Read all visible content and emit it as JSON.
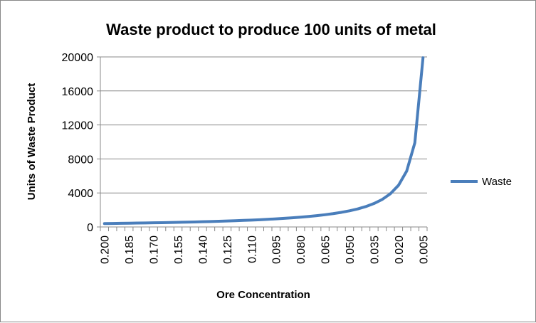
{
  "chart_data": {
    "type": "line",
    "title": "Waste product to produce 100 units of metal",
    "xlabel": "Ore Concentration",
    "ylabel": "Units of Waste Product",
    "ylim": [
      0,
      20000
    ],
    "yticks": [
      "0",
      "4000",
      "8000",
      "12000",
      "16000",
      "20000"
    ],
    "grid": true,
    "legend_position": "right",
    "categories": [
      "0.200",
      "0.195",
      "0.190",
      "0.185",
      "0.180",
      "0.175",
      "0.170",
      "0.165",
      "0.160",
      "0.155",
      "0.150",
      "0.145",
      "0.140",
      "0.135",
      "0.130",
      "0.125",
      "0.120",
      "0.115",
      "0.110",
      "0.105",
      "0.100",
      "0.095",
      "0.090",
      "0.085",
      "0.080",
      "0.075",
      "0.070",
      "0.065",
      "0.060",
      "0.055",
      "0.050",
      "0.045",
      "0.040",
      "0.035",
      "0.030",
      "0.025",
      "0.020",
      "0.015",
      "0.010",
      "0.005"
    ],
    "shown_tick_labels": [
      "0.200",
      "0.185",
      "0.170",
      "0.155",
      "0.140",
      "0.125",
      "0.110",
      "0.095",
      "0.080",
      "0.065",
      "0.050",
      "0.035",
      "0.020",
      "0.005"
    ],
    "series": [
      {
        "name": "Waste",
        "color": "#4a7ebb",
        "values": [
          400,
          413,
          426,
          441,
          456,
          471,
          488,
          506,
          525,
          545,
          567,
          590,
          614,
          641,
          669,
          700,
          733,
          770,
          809,
          852,
          900,
          953,
          1011,
          1076,
          1150,
          1233,
          1329,
          1438,
          1567,
          1718,
          1900,
          2122,
          2400,
          2757,
          3233,
          3900,
          4900,
          6567,
          9900,
          19900
        ]
      }
    ]
  }
}
